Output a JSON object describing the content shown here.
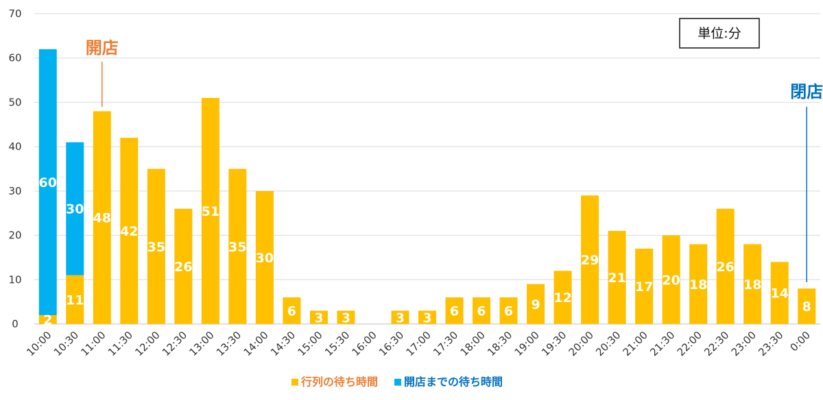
{
  "chart_data": {
    "type": "bar",
    "stacked": true,
    "categories": [
      "10:00",
      "10:30",
      "11:00",
      "11:30",
      "12:00",
      "12:30",
      "13:00",
      "13:30",
      "14:00",
      "14:30",
      "15:00",
      "15:30",
      "16:00",
      "16:30",
      "17:00",
      "17:30",
      "18:00",
      "18:30",
      "19:00",
      "19:30",
      "20:00",
      "20:30",
      "21:00",
      "21:30",
      "22:00",
      "22:30",
      "23:00",
      "23:30",
      "0:00"
    ],
    "series": [
      {
        "name": "行列の待ち時間",
        "color": "#FFC000",
        "values": [
          2,
          11,
          48,
          42,
          35,
          26,
          51,
          35,
          30,
          6,
          3,
          3,
          0,
          3,
          3,
          6,
          6,
          6,
          9,
          12,
          29,
          21,
          17,
          20,
          18,
          26,
          18,
          14,
          8
        ],
        "labels": [
          "2",
          "11",
          "48",
          "42",
          "35",
          "26",
          "51",
          "35",
          "30",
          "6",
          "3",
          "3",
          "",
          "3",
          "3",
          "6",
          "6",
          "6",
          "9",
          "12",
          "29",
          "21",
          "17",
          "20",
          "18",
          "26",
          "18",
          "14",
          "8"
        ]
      },
      {
        "name": "開店までの待ち時間",
        "color": "#00B0F0",
        "values": [
          60,
          30,
          0,
          0,
          0,
          0,
          0,
          0,
          0,
          0,
          0,
          0,
          0,
          0,
          0,
          0,
          0,
          0,
          0,
          0,
          0,
          0,
          0,
          0,
          0,
          0,
          0,
          0,
          0
        ],
        "labels": [
          "60",
          "30",
          "",
          "",
          "",
          "",
          "",
          "",
          "",
          "",
          "",
          "",
          "",
          "",
          "",
          "",
          "",
          "",
          "",
          "",
          "",
          "",
          "",
          "",
          "",
          "",
          "",
          "",
          ""
        ]
      }
    ],
    "ylim": [
      0,
      70
    ],
    "yticks": [
      "0",
      "10",
      "20",
      "30",
      "40",
      "50",
      "60",
      "70"
    ],
    "grid": true,
    "legend": "bottom",
    "annotations": [
      {
        "text": "開店",
        "category": "11:00",
        "color": "#ED7D31"
      },
      {
        "text": "閉店",
        "category": "0:00",
        "color": "#0070C0"
      }
    ],
    "unit_label": "単位:分"
  }
}
